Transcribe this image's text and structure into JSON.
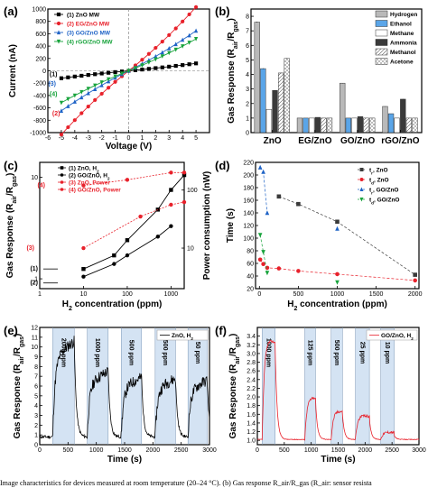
{
  "caption": "Image characteristics for devices measured at room temperature (20–24 °C). (b) Gas response R_air/R_gas (R_air: sensor resista",
  "colors": {
    "black": "#000000",
    "red": "#e8212b",
    "blue": "#1f63c6",
    "green": "#17a33b",
    "gray": "#b9b9b9",
    "lightblue": "#5aa5e8",
    "darkgray": "#3a3a3a"
  },
  "chart_data": [
    {
      "panel": "(a)",
      "type": "line",
      "xlabel": "Voltage (V)",
      "ylabel": "Current (nA)",
      "xlim": [
        -6,
        6
      ],
      "ylim": [
        -1000,
        1000
      ],
      "xticks": [
        -6,
        -5,
        -4,
        -3,
        -2,
        -1,
        0,
        1,
        2,
        3,
        4,
        5
      ],
      "yticks": [
        -1000,
        -800,
        -600,
        -400,
        -200,
        0,
        200,
        400,
        600,
        800,
        1000
      ],
      "x": [
        -5,
        -4.5,
        -4,
        -3.5,
        -3,
        -2.5,
        -2,
        -1.5,
        -1,
        -0.5,
        0,
        0.5,
        1,
        1.5,
        2,
        2.5,
        3,
        3.5,
        4,
        4.5,
        5
      ],
      "series": [
        {
          "name": "(1) ZnO MW",
          "color": "#000000",
          "marker": "square",
          "slope": 20
        },
        {
          "name": "(2) EG/ZnO MW",
          "color": "#e8212b",
          "marker": "circle",
          "slope": 172
        },
        {
          "name": "(3) GO/ZnO MW",
          "color": "#1f63c6",
          "marker": "triangle",
          "slope": 108
        },
        {
          "name": "(4) rGO/ZnO MW",
          "color": "#17a33b",
          "marker": "triangle-down",
          "slope": 86
        }
      ],
      "annotations": [
        "(1)",
        "(2)",
        "(3)",
        "(4)"
      ]
    },
    {
      "panel": "(b)",
      "type": "bar",
      "xlabel": "",
      "ylabel": "Gas Response (R_air/R_gas)",
      "ylim": [
        0,
        8.5
      ],
      "yticks": [
        0,
        1,
        2,
        3,
        4,
        5,
        6,
        7,
        8
      ],
      "categories": [
        "ZnO",
        "EG/ZnO",
        "GO/ZnO",
        "rGO/ZnO"
      ],
      "series": [
        {
          "name": "Hydrogen",
          "color": "#b9b9b9",
          "values": [
            7.6,
            1.0,
            3.4,
            1.8
          ]
        },
        {
          "name": "Ethanol",
          "color": "#5aa5e8",
          "values": [
            4.4,
            1.0,
            1.0,
            1.3
          ]
        },
        {
          "name": "Methane",
          "color": "#ffffff",
          "values": [
            1.6,
            1.0,
            1.0,
            1.0
          ]
        },
        {
          "name": "Ammonia",
          "color": "#3a3a3a",
          "values": [
            2.9,
            1.05,
            1.1,
            2.3
          ]
        },
        {
          "name": "Methanol",
          "color": "#ffffff",
          "values": [
            4.1,
            1.0,
            1.0,
            1.0
          ]
        },
        {
          "name": "Acetone",
          "color": "#ffffff",
          "values": [
            5.1,
            1.0,
            1.0,
            1.0
          ]
        }
      ]
    },
    {
      "panel": "(c)",
      "type": "line",
      "xlabel": "H2 concentration (ppm)",
      "ylabel": "Gas Response (R_air/R_gas)",
      "ylabel_right": "Power consumption (nW)",
      "xscale": "log",
      "xlim": [
        1,
        2000
      ],
      "xticks": [
        1,
        10,
        100,
        1000
      ],
      "xticklabels": [
        "1",
        "10",
        "100",
        "1000"
      ],
      "yscale": "log",
      "yticks": [
        1,
        10
      ],
      "yticklabels": [
        "1",
        "10"
      ],
      "yticks_right": [
        10,
        100
      ],
      "yticklabels_right": [
        "10",
        "100"
      ],
      "x": [
        10,
        50,
        100,
        500,
        1000,
        2000
      ],
      "series": [
        {
          "name": "(1) ZnO, H2",
          "color": "#000000",
          "marker": "square",
          "values": [
            1.25,
            1.7,
            2.4,
            4.8,
            7.5,
            10.5
          ]
        },
        {
          "name": "(2) GO/ZnO, H2",
          "color": "#000000",
          "marker": "circle",
          "values": [
            1.05,
            1.4,
            1.7,
            2.6,
            3.3,
            null
          ]
        },
        {
          "name": "(3) ZnO, Power",
          "color": "#e8212b",
          "marker": "circle",
          "values": [
            5.5,
            null,
            null,
            null,
            null,
            200
          ]
        },
        {
          "name": "(4) GO/ZnO, Power",
          "color": "#e8212b",
          "marker": "circle",
          "values": [
            null,
            null,
            null,
            null,
            null,
            null
          ]
        }
      ],
      "annotations": [
        "(1)",
        "(2)",
        "(3)",
        "(4)"
      ]
    },
    {
      "panel": "(d)",
      "type": "scatter",
      "xlabel": "H2 concentration (ppm)",
      "ylabel": "Time (s)",
      "xlim": [
        -50,
        2050
      ],
      "ylim": [
        20,
        220
      ],
      "xticks": [
        0,
        500,
        1000,
        1500,
        2000
      ],
      "yticks": [
        20,
        40,
        60,
        80,
        100,
        120,
        140,
        160,
        180,
        200,
        220
      ],
      "series": [
        {
          "name": "t_r, ZnO",
          "color": "#3a3a3a",
          "marker": "square",
          "x": [
            250,
            500,
            1000,
            2000
          ],
          "values": [
            166,
            154,
            126,
            42
          ]
        },
        {
          "name": "t_d, ZnO",
          "color": "#e8212b",
          "marker": "circle",
          "x": [
            10,
            50,
            100,
            250,
            500,
            1000,
            2000
          ],
          "values": [
            66,
            59,
            53,
            52,
            48,
            43,
            33
          ]
        },
        {
          "name": "t_r, GO/ZnO",
          "color": "#1f63c6",
          "marker": "triangle",
          "x": [
            10,
            50,
            100,
            1000
          ],
          "values": [
            212,
            205,
            140,
            115
          ]
        },
        {
          "name": "t_d, GO/ZnO",
          "color": "#17a33b",
          "marker": "triangle-down",
          "x": [
            10,
            50,
            100,
            1000
          ],
          "values": [
            105,
            78,
            45,
            30
          ]
        }
      ]
    },
    {
      "panel": "(e)",
      "type": "line",
      "xlabel": "Time (s)",
      "ylabel": "Gas Response (R_air/R_gas)",
      "xlim": [
        0,
        3000
      ],
      "ylim": [
        0,
        12
      ],
      "xticks": [
        0,
        500,
        1000,
        1500,
        2000,
        2500,
        3000
      ],
      "yticks": [
        0,
        1,
        2,
        3,
        4,
        5,
        6,
        7,
        8,
        9,
        10,
        11,
        12
      ],
      "legend": "ZnO, H2",
      "pulses": [
        {
          "label": "2000 ppm",
          "on": 230,
          "off": 610,
          "peak": 10.6
        },
        {
          "label": "1000 ppm",
          "on": 840,
          "off": 1210,
          "peak": 7.5
        },
        {
          "label": "500 ppm",
          "on": 1440,
          "off": 1800,
          "peak": 6.9
        },
        {
          "label": "500 ppm",
          "on": 2040,
          "off": 2400,
          "peak": 6.8
        },
        {
          "label": "50 ppm",
          "on": 2620,
          "off": 2960,
          "peak": 6.6
        }
      ]
    },
    {
      "panel": "(f)",
      "type": "line",
      "xlabel": "Time (s)",
      "ylabel": "Gas Response (R_air/R_gas)",
      "xlim": [
        0,
        3000
      ],
      "ylim": [
        0.9,
        3.6
      ],
      "xticks": [
        0,
        500,
        1000,
        1500,
        2000,
        2500,
        3000
      ],
      "yticks": [
        1.0,
        1.2,
        1.4,
        1.6,
        1.8,
        2.0,
        2.2,
        2.4,
        2.6,
        2.8,
        3.0,
        3.2,
        3.4
      ],
      "legend": "GO/ZnO, H2",
      "pulses": [
        {
          "label": "1000 ppm",
          "on": 90,
          "off": 330,
          "peak": 3.45
        },
        {
          "label": "125 ppm",
          "on": 880,
          "off": 1080,
          "peak": 2.05
        },
        {
          "label": "500 ppm",
          "on": 1370,
          "off": 1580,
          "peak": 1.72
        },
        {
          "label": "25 ppm",
          "on": 1820,
          "off": 2080,
          "peak": 1.6
        },
        {
          "label": "10 ppm",
          "on": 2290,
          "off": 2540,
          "peak": 1.2
        }
      ]
    }
  ]
}
